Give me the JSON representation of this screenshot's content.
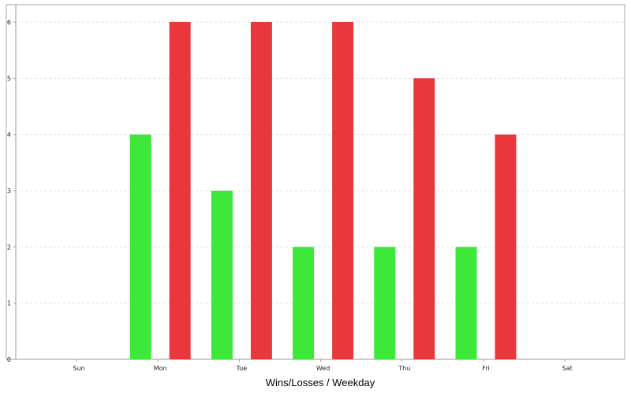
{
  "chart_data": {
    "type": "bar",
    "title": "",
    "xlabel": "Wins/Losses / Weekday",
    "ylabel": "",
    "categories": [
      "Sun",
      "Mon",
      "Tue",
      "Wed",
      "Thu",
      "Fri",
      "Sat"
    ],
    "series": [
      {
        "values": [
          0,
          4,
          3,
          2,
          2,
          2,
          0
        ],
        "color": "#3de83a"
      },
      {
        "values": [
          0,
          6,
          6,
          6,
          5,
          4,
          0
        ],
        "color": "#e8383b"
      }
    ],
    "ylim": [
      0,
      6
    ],
    "yticks": [
      0,
      1,
      2,
      3,
      4,
      5,
      6
    ],
    "grid": "horizontal-dashed",
    "legend": "none"
  },
  "colors": {
    "grid": "#dddddd",
    "axis": "#999999",
    "frame": "#aaaaaa"
  }
}
